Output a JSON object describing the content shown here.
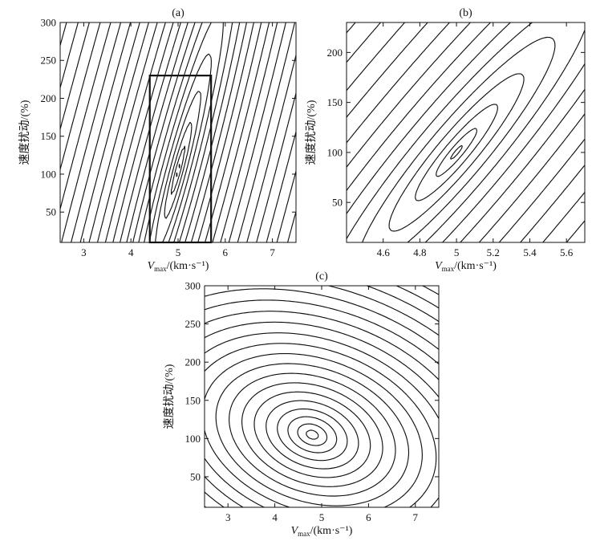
{
  "chart_data": [
    {
      "panel": "(a)",
      "type": "contour",
      "xlabel": "V",
      "xlabel_sub": "max",
      "xlabel_unit": "/(km·s⁻¹)",
      "ylabel": "速度扰动/(%)",
      "xlim": [
        2.5,
        7.5
      ],
      "ylim": [
        10,
        300
      ],
      "xticks": [
        "3",
        "4",
        "5",
        "6",
        "7"
      ],
      "yticks": [
        "50",
        "100",
        "150",
        "200",
        "250",
        "300"
      ],
      "minimum": {
        "x": 5.0,
        "y": 105
      },
      "highlight_box": {
        "x": [
          4.4,
          5.7
        ],
        "y": [
          10,
          230
        ]
      }
    },
    {
      "panel": "(b)",
      "type": "contour",
      "xlabel": "V",
      "xlabel_sub": "max",
      "xlabel_unit": "/(km·s⁻¹)",
      "ylabel": "速度扰动/(%)",
      "xlim": [
        4.4,
        5.7
      ],
      "ylim": [
        10,
        230
      ],
      "xticks": [
        "4.6",
        "4.8",
        "5",
        "5.2",
        "5.4",
        "5.6"
      ],
      "yticks": [
        "50",
        "100",
        "150",
        "200"
      ],
      "minimum": {
        "x": 5.0,
        "y": 100
      }
    },
    {
      "panel": "(c)",
      "type": "contour",
      "xlabel": "V",
      "xlabel_sub": "max",
      "xlabel_unit": "/(km·s⁻¹)",
      "ylabel": "速度扰动/(%)",
      "xlim": [
        2.5,
        7.5
      ],
      "ylim": [
        10,
        300
      ],
      "xticks": [
        "3",
        "4",
        "5",
        "6",
        "7"
      ],
      "yticks": [
        "50",
        "100",
        "150",
        "200",
        "250",
        "300"
      ],
      "minimum": {
        "x": 4.8,
        "y": 105
      }
    }
  ]
}
